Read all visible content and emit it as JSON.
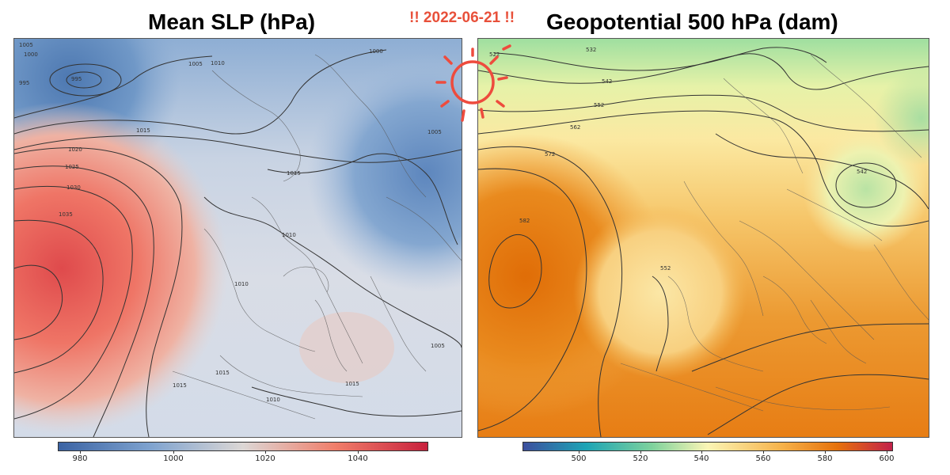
{
  "titles": {
    "left": "Mean SLP (hPa)",
    "right": "Geopotential 500 hPa (dam)",
    "date": "!! 2022-06-21 !!"
  },
  "slp_panel": {
    "colorbar_ticks": [
      "980",
      "1000",
      "1020",
      "1040"
    ],
    "colors": {
      "low": "#3b63a3",
      "mid": "#dcd7d5",
      "high": "#c8213d"
    },
    "isobar_labels": [
      "1005",
      "1000",
      "995",
      "995",
      "1005",
      "1010",
      "1000",
      "1015",
      "1020",
      "1025",
      "1030",
      "1035",
      "1015",
      "1010",
      "1010",
      "1015",
      "1015",
      "1005",
      "1005",
      "1010",
      "1015"
    ]
  },
  "geo_panel": {
    "colorbar_ticks": [
      "500",
      "520",
      "540",
      "560",
      "580",
      "600"
    ],
    "colors": {
      "low": "#3d4f9e",
      "mid": "#fbf5b5",
      "high": "#c2214a",
      "orange": "#e8780a"
    },
    "contour_labels": [
      "522",
      "532",
      "542",
      "552",
      "562",
      "572",
      "582",
      "542",
      "552"
    ]
  },
  "icons": [
    "sun-icon"
  ]
}
